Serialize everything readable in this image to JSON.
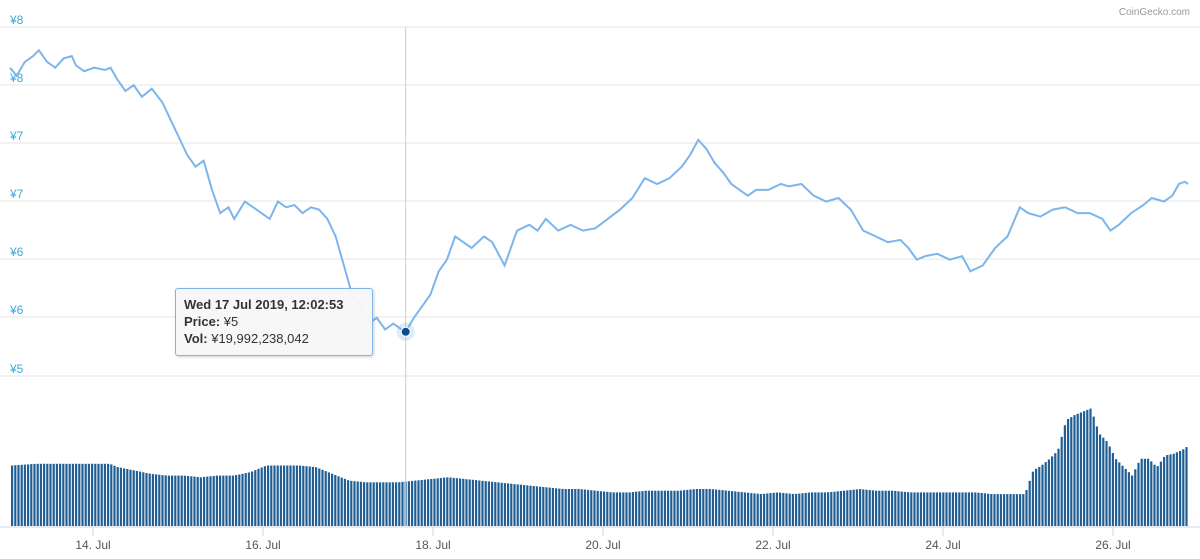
{
  "credit": "CoinGecko.com",
  "tooltip": {
    "date": "Wed 17 Jul 2019, 12:02:53",
    "price_label": "Price:",
    "price_value": "¥5",
    "vol_label": "Vol:",
    "vol_value": "¥19,992,238,042"
  },
  "colors": {
    "price_line": "#7cb5ec",
    "volume_bars": "#1f5f96",
    "marker": "#0d4f8c",
    "axis_text": "#3aaad6",
    "grid": "#e6e6e6"
  },
  "chart_data": {
    "type": "line",
    "title": "",
    "y_tick_labels": [
      "¥8",
      "¥8",
      "¥7",
      "¥7",
      "¥6",
      "¥6",
      "¥5"
    ],
    "x_tick_labels": [
      "14. Jul",
      "16. Jul",
      "18. Jul",
      "20. Jul",
      "22. Jul",
      "24. Jul",
      "26. Jul"
    ],
    "ylim": [
      5.35,
      8.35
    ],
    "xlim": [
      12.7,
      26.99
    ],
    "grid": true,
    "highlight": {
      "x": 17.5,
      "y": 5.73
    },
    "series": [
      {
        "x": [
          12.7,
          12.78,
          12.88,
          12.98,
          13.05,
          13.15,
          13.25,
          13.35,
          13.45,
          13.5,
          13.6,
          13.72,
          13.85,
          13.92,
          14.0,
          14.1,
          14.2,
          14.3,
          14.42,
          14.55,
          14.65,
          14.75,
          14.85,
          14.95,
          15.05,
          15.15,
          15.25,
          15.35,
          15.42,
          15.55,
          15.65,
          15.75,
          15.85,
          15.95,
          16.05,
          16.15,
          16.25,
          16.35,
          16.45,
          16.55,
          16.65,
          16.75,
          16.85,
          16.95,
          17.05,
          17.15,
          17.25,
          17.35,
          17.45,
          17.5,
          17.6,
          17.7,
          17.8,
          17.9,
          18.0,
          18.1,
          18.2,
          18.3,
          18.45,
          18.55,
          18.7,
          18.85,
          19.0,
          19.1,
          19.2,
          19.35,
          19.5,
          19.65,
          19.8,
          19.95,
          20.1,
          20.25,
          20.4,
          20.55,
          20.7,
          20.85,
          20.95,
          21.05,
          21.15,
          21.25,
          21.35,
          21.45,
          21.55,
          21.65,
          21.75,
          21.9,
          22.05,
          22.15,
          22.3,
          22.45,
          22.6,
          22.75,
          22.9,
          23.05,
          23.2,
          23.35,
          23.5,
          23.6,
          23.7,
          23.8,
          23.95,
          24.1,
          24.25,
          24.35,
          24.5,
          24.65,
          24.8,
          24.95,
          25.05,
          25.2,
          25.35,
          25.5,
          25.65,
          25.8,
          25.95,
          26.05,
          26.15,
          26.3,
          26.45,
          26.55,
          26.7,
          26.8,
          26.88,
          26.95,
          26.99
        ],
        "values": [
          8.0,
          7.93,
          8.05,
          8.1,
          8.15,
          8.05,
          8.0,
          8.08,
          8.1,
          8.02,
          7.97,
          8.0,
          7.98,
          8.0,
          7.9,
          7.8,
          7.85,
          7.75,
          7.82,
          7.7,
          7.55,
          7.4,
          7.25,
          7.15,
          7.2,
          6.95,
          6.75,
          6.8,
          6.7,
          6.85,
          6.8,
          6.75,
          6.7,
          6.85,
          6.8,
          6.82,
          6.75,
          6.8,
          6.78,
          6.7,
          6.55,
          6.3,
          6.05,
          5.95,
          5.8,
          5.85,
          5.75,
          5.8,
          5.75,
          5.73,
          5.85,
          5.95,
          6.05,
          6.25,
          6.35,
          6.55,
          6.5,
          6.45,
          6.55,
          6.5,
          6.3,
          6.6,
          6.65,
          6.6,
          6.7,
          6.6,
          6.65,
          6.6,
          6.62,
          6.7,
          6.78,
          6.88,
          7.05,
          7.0,
          7.05,
          7.15,
          7.25,
          7.38,
          7.3,
          7.18,
          7.1,
          7.0,
          6.95,
          6.9,
          6.95,
          6.95,
          7.0,
          6.98,
          7.0,
          6.9,
          6.85,
          6.88,
          6.78,
          6.6,
          6.55,
          6.5,
          6.52,
          6.45,
          6.35,
          6.38,
          6.4,
          6.35,
          6.38,
          6.25,
          6.3,
          6.45,
          6.55,
          6.8,
          6.75,
          6.72,
          6.78,
          6.8,
          6.75,
          6.75,
          6.7,
          6.6,
          6.65,
          6.75,
          6.82,
          6.88,
          6.85,
          6.9,
          7.0,
          7.02,
          7.0
        ]
      }
    ],
    "volume": {
      "x": [
        12.7,
        13.0,
        13.3,
        13.6,
        13.9,
        14.0,
        14.2,
        14.4,
        14.6,
        14.8,
        15.0,
        15.2,
        15.4,
        15.6,
        15.8,
        16.0,
        16.2,
        16.4,
        16.6,
        16.8,
        17.0,
        17.2,
        17.4,
        17.6,
        17.8,
        18.0,
        18.2,
        18.4,
        18.6,
        18.8,
        19.0,
        19.2,
        19.4,
        19.6,
        19.8,
        20.0,
        20.2,
        20.4,
        20.6,
        20.8,
        21.0,
        21.2,
        21.4,
        21.6,
        21.8,
        22.0,
        22.2,
        22.4,
        22.6,
        22.8,
        23.0,
        23.2,
        23.4,
        23.6,
        23.8,
        24.0,
        24.2,
        24.4,
        24.6,
        24.8,
        25.0,
        25.1,
        25.2,
        25.3,
        25.4,
        25.5,
        25.6,
        25.7,
        25.8,
        25.9,
        26.0,
        26.1,
        26.2,
        26.3,
        26.4,
        26.5,
        26.6,
        26.7,
        26.8,
        26.9,
        26.99
      ],
      "values": [
        36,
        37,
        37,
        37,
        37,
        35,
        33,
        31,
        30,
        30,
        29,
        30,
        30,
        32,
        36,
        36,
        36,
        35,
        31,
        27,
        26,
        26,
        26,
        27,
        28,
        29,
        28,
        27,
        26,
        25,
        24,
        23,
        22,
        22,
        21,
        20,
        20,
        21,
        21,
        21,
        22,
        22,
        21,
        20,
        19,
        20,
        19,
        20,
        20,
        21,
        22,
        21,
        21,
        20,
        20,
        20,
        20,
        20,
        19,
        19,
        19,
        33,
        36,
        40,
        45,
        63,
        66,
        68,
        70,
        55,
        50,
        40,
        35,
        30,
        40,
        40,
        35,
        42,
        43,
        45,
        48
      ]
    }
  }
}
